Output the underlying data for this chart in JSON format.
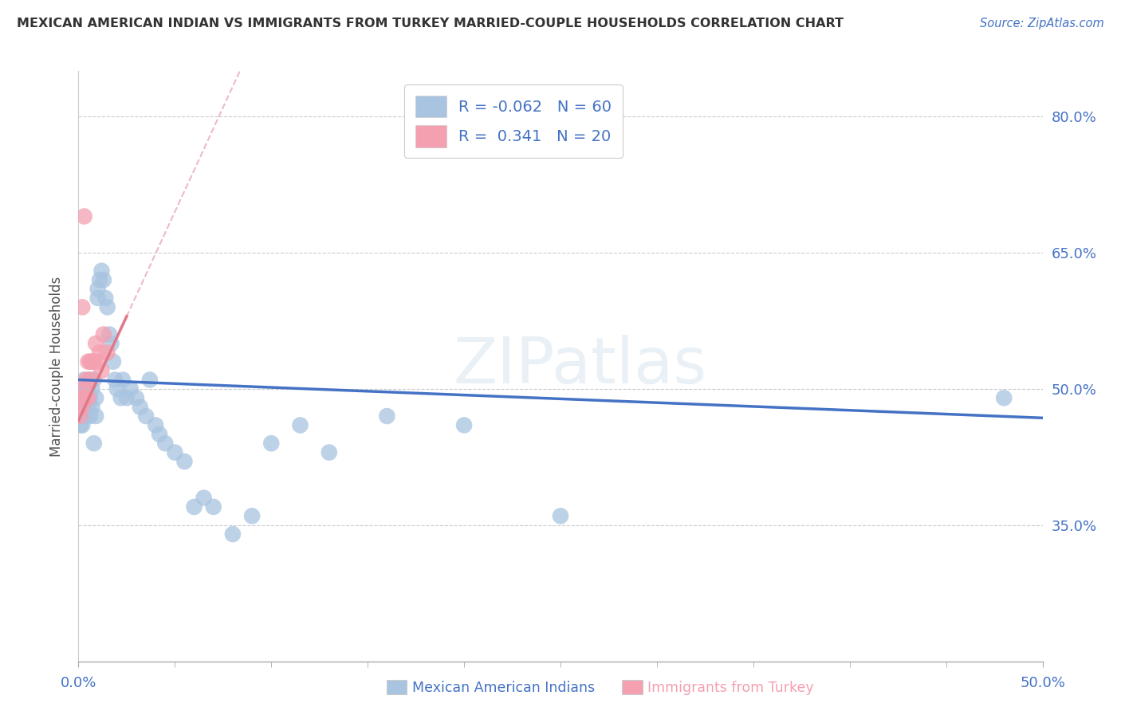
{
  "title": "MEXICAN AMERICAN INDIAN VS IMMIGRANTS FROM TURKEY MARRIED-COUPLE HOUSEHOLDS CORRELATION CHART",
  "source": "Source: ZipAtlas.com",
  "xlabel_blue": "Mexican American Indians",
  "xlabel_pink": "Immigrants from Turkey",
  "ylabel": "Married-couple Households",
  "xmin": 0.0,
  "xmax": 0.5,
  "ymin": 0.2,
  "ymax": 0.85,
  "yticks": [
    0.35,
    0.5,
    0.65,
    0.8
  ],
  "ytick_labels": [
    "35.0%",
    "50.0%",
    "65.0%",
    "80.0%"
  ],
  "xtick_labels_show": [
    "0.0%",
    "50.0%"
  ],
  "xtick_minor_positions": [
    0.05,
    0.1,
    0.15,
    0.2,
    0.25,
    0.3,
    0.35,
    0.4,
    0.45
  ],
  "R_blue": -0.062,
  "N_blue": 60,
  "R_pink": 0.341,
  "N_pink": 20,
  "color_blue": "#a8c4e0",
  "color_pink": "#f4a0b0",
  "line_blue": "#4472c4",
  "line_pink": "#e07888",
  "line_dashed_color": "#e8b0bb",
  "watermark": "ZIPatlas",
  "blue_line_y0": 0.51,
  "blue_line_y1": 0.468,
  "pink_line_x0": 0.0,
  "pink_line_x1": 0.025,
  "pink_line_y0": 0.465,
  "pink_line_y1": 0.58,
  "blue_x": [
    0.001,
    0.001,
    0.001,
    0.001,
    0.002,
    0.002,
    0.002,
    0.003,
    0.003,
    0.003,
    0.004,
    0.004,
    0.005,
    0.005,
    0.006,
    0.006,
    0.006,
    0.007,
    0.007,
    0.008,
    0.008,
    0.009,
    0.009,
    0.01,
    0.01,
    0.011,
    0.012,
    0.013,
    0.014,
    0.015,
    0.016,
    0.017,
    0.018,
    0.019,
    0.02,
    0.022,
    0.023,
    0.025,
    0.027,
    0.03,
    0.032,
    0.035,
    0.037,
    0.04,
    0.042,
    0.045,
    0.05,
    0.055,
    0.06,
    0.065,
    0.07,
    0.08,
    0.09,
    0.1,
    0.115,
    0.13,
    0.16,
    0.2,
    0.25,
    0.48
  ],
  "blue_y": [
    0.49,
    0.48,
    0.47,
    0.46,
    0.5,
    0.49,
    0.46,
    0.51,
    0.48,
    0.5,
    0.49,
    0.47,
    0.5,
    0.48,
    0.51,
    0.49,
    0.47,
    0.5,
    0.48,
    0.51,
    0.44,
    0.47,
    0.49,
    0.61,
    0.6,
    0.62,
    0.63,
    0.62,
    0.6,
    0.59,
    0.56,
    0.55,
    0.53,
    0.51,
    0.5,
    0.49,
    0.51,
    0.49,
    0.5,
    0.49,
    0.48,
    0.47,
    0.51,
    0.46,
    0.45,
    0.44,
    0.43,
    0.42,
    0.37,
    0.38,
    0.37,
    0.34,
    0.36,
    0.44,
    0.46,
    0.43,
    0.47,
    0.46,
    0.36,
    0.49
  ],
  "pink_x": [
    0.001,
    0.001,
    0.002,
    0.002,
    0.003,
    0.003,
    0.004,
    0.004,
    0.005,
    0.005,
    0.006,
    0.006,
    0.007,
    0.008,
    0.009,
    0.01,
    0.011,
    0.012,
    0.013,
    0.015
  ],
  "pink_y": [
    0.49,
    0.47,
    0.59,
    0.48,
    0.5,
    0.69,
    0.49,
    0.51,
    0.49,
    0.53,
    0.53,
    0.51,
    0.53,
    0.53,
    0.55,
    0.53,
    0.54,
    0.52,
    0.56,
    0.54
  ]
}
